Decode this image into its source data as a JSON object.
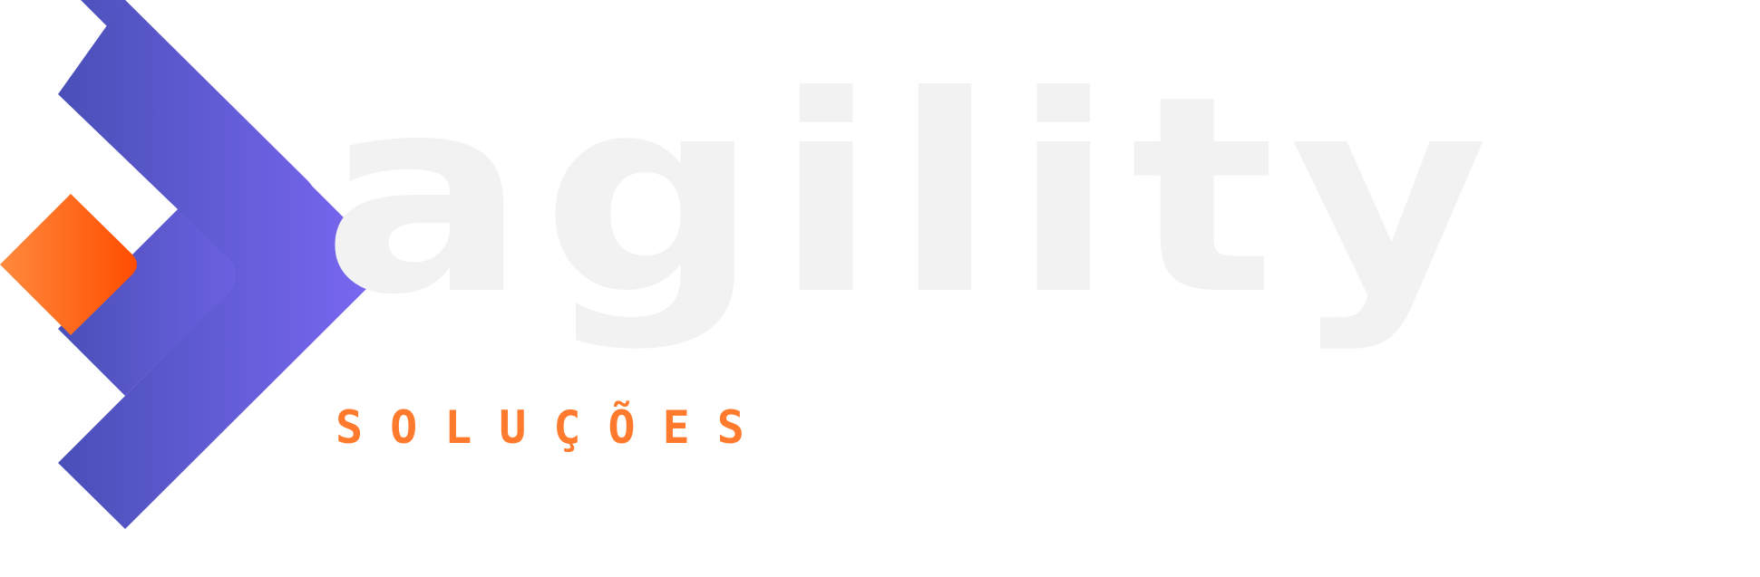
{
  "brand": {
    "name": "agility",
    "tagline": "SOLUÇÕES"
  },
  "colors": {
    "chevron_start": "#4a4fb8",
    "chevron_end": "#7a68f2",
    "diamond_start": "#ff8a3d",
    "diamond_end": "#ff4d00",
    "wordmark": "#f2f2f2",
    "tagline": "#ff7a2c"
  }
}
